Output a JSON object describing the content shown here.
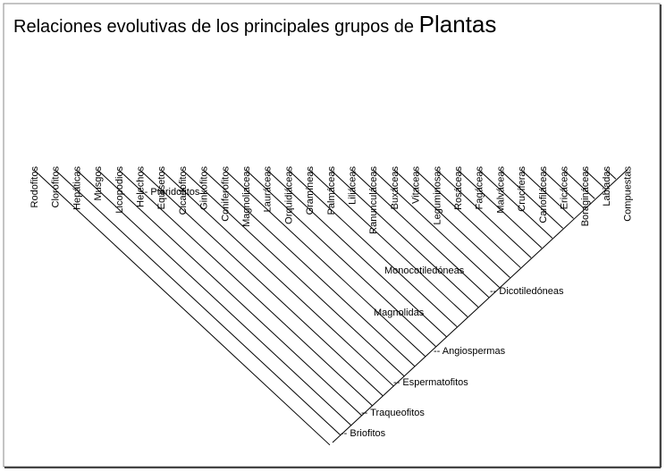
{
  "title": {
    "text": "Relaciones evolutivas de los principales grupos de",
    "emphasis": "Plantas"
  },
  "taxa": [
    "Rodofitos",
    "Clorófitos",
    "Hepáticas",
    "Musgos",
    "Licopodios",
    "Helechos",
    "Equisetos",
    "Cicadofitos",
    "Ginkofitos",
    "Coniferofitos",
    "Magnoliaceas",
    "Lauráceas",
    "Orquidiáceas",
    "Gramíneas",
    "Palmáceas",
    "Liliáceas",
    "Ranunculáceas",
    "Buxáceas",
    "Vitaceas",
    "Leguminosas",
    "Rosáceas",
    "Fagáceas",
    "Malváceas",
    "Crucíferas",
    "Cariofiláceas",
    "Ericáceas",
    "Boragináceas",
    "Labiadas",
    "Compuestas"
  ],
  "clades": [
    "-- Pteridofitos",
    "Monocotiledóneas",
    "-- Dicotiledóneas",
    "Magnolidas",
    "-- Angiospermas",
    "-- Espermatofitos",
    "-- Traqueofitos",
    "-- Briofitos"
  ]
}
